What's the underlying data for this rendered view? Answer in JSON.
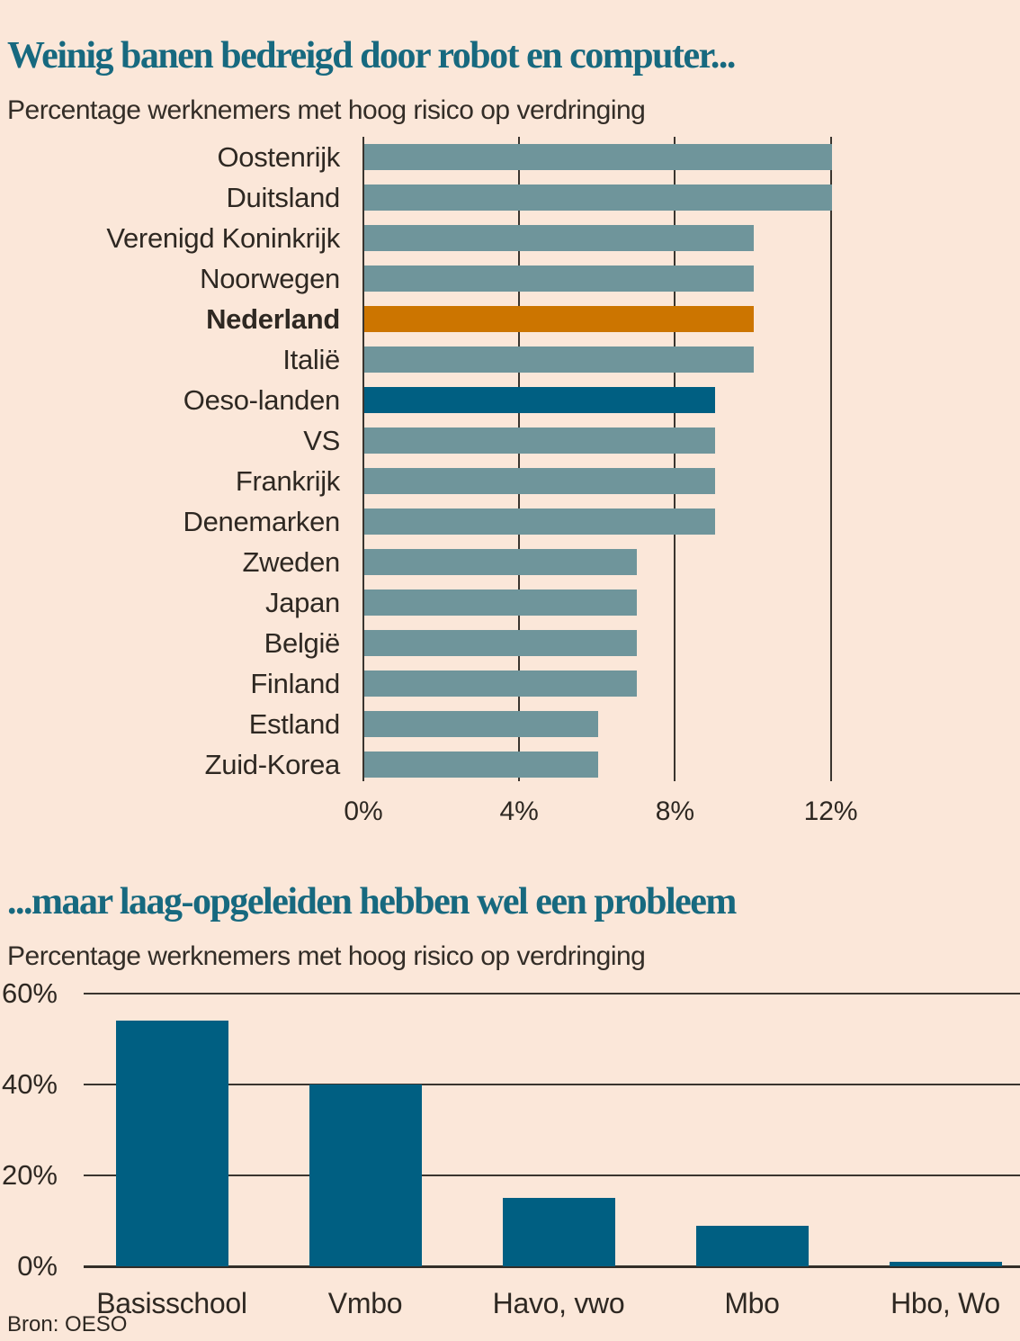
{
  "source": "Bron: OESO",
  "colors": {
    "background": "#fbe7d9",
    "title_teal": "#17697f",
    "bar_teal_gray": "#6f959b",
    "bar_orange": "#cc7500",
    "bar_dark_blue": "#005f82",
    "gridline": "#3a352f",
    "text": "#2e2822"
  },
  "chart_data": [
    {
      "type": "bar",
      "orientation": "horizontal",
      "title": "Weinig banen bedreigd door robot en computer...",
      "subtitle": "Percentage werknemers met hoog risico op verdringing",
      "categories": [
        "Oostenrijk",
        "Duitsland",
        "Verenigd Koninkrijk",
        "Noorwegen",
        "Nederland",
        "Italië",
        "Oeso-landen",
        "VS",
        "Frankrijk",
        "Denemarken",
        "Zweden",
        "Japan",
        "België",
        "Finland",
        "Estland",
        "Zuid-Korea"
      ],
      "values": [
        12,
        12,
        10,
        10,
        10,
        10,
        9,
        9,
        9,
        9,
        7,
        7,
        7,
        7,
        6,
        6
      ],
      "bar_color": "#6f959b",
      "highlight_colors": {
        "Nederland": "#cc7500",
        "Oeso-landen": "#005f82"
      },
      "bold_category": "Nederland",
      "x_ticks": [
        "0%",
        "4%",
        "8%",
        "12%"
      ],
      "x_tick_values": [
        0,
        4,
        8,
        12
      ],
      "xlim": [
        0,
        13.5
      ],
      "grid": true,
      "legend": "none"
    },
    {
      "type": "bar",
      "orientation": "vertical",
      "title": "...maar laag-opgeleiden hebben wel een probleem",
      "subtitle": "Percentage werknemers met hoog risico op verdringing",
      "categories": [
        "Basisschool",
        "Vmbo",
        "Havo, vwo",
        "Mbo",
        "Hbo, Wo"
      ],
      "values": [
        54,
        40,
        15,
        9,
        1
      ],
      "bar_color": "#005f82",
      "y_ticks": [
        "0%",
        "20%",
        "40%",
        "60%"
      ],
      "y_tick_values": [
        0,
        20,
        40,
        60
      ],
      "ylim": [
        0,
        60
      ],
      "grid": true,
      "legend": "none"
    }
  ]
}
